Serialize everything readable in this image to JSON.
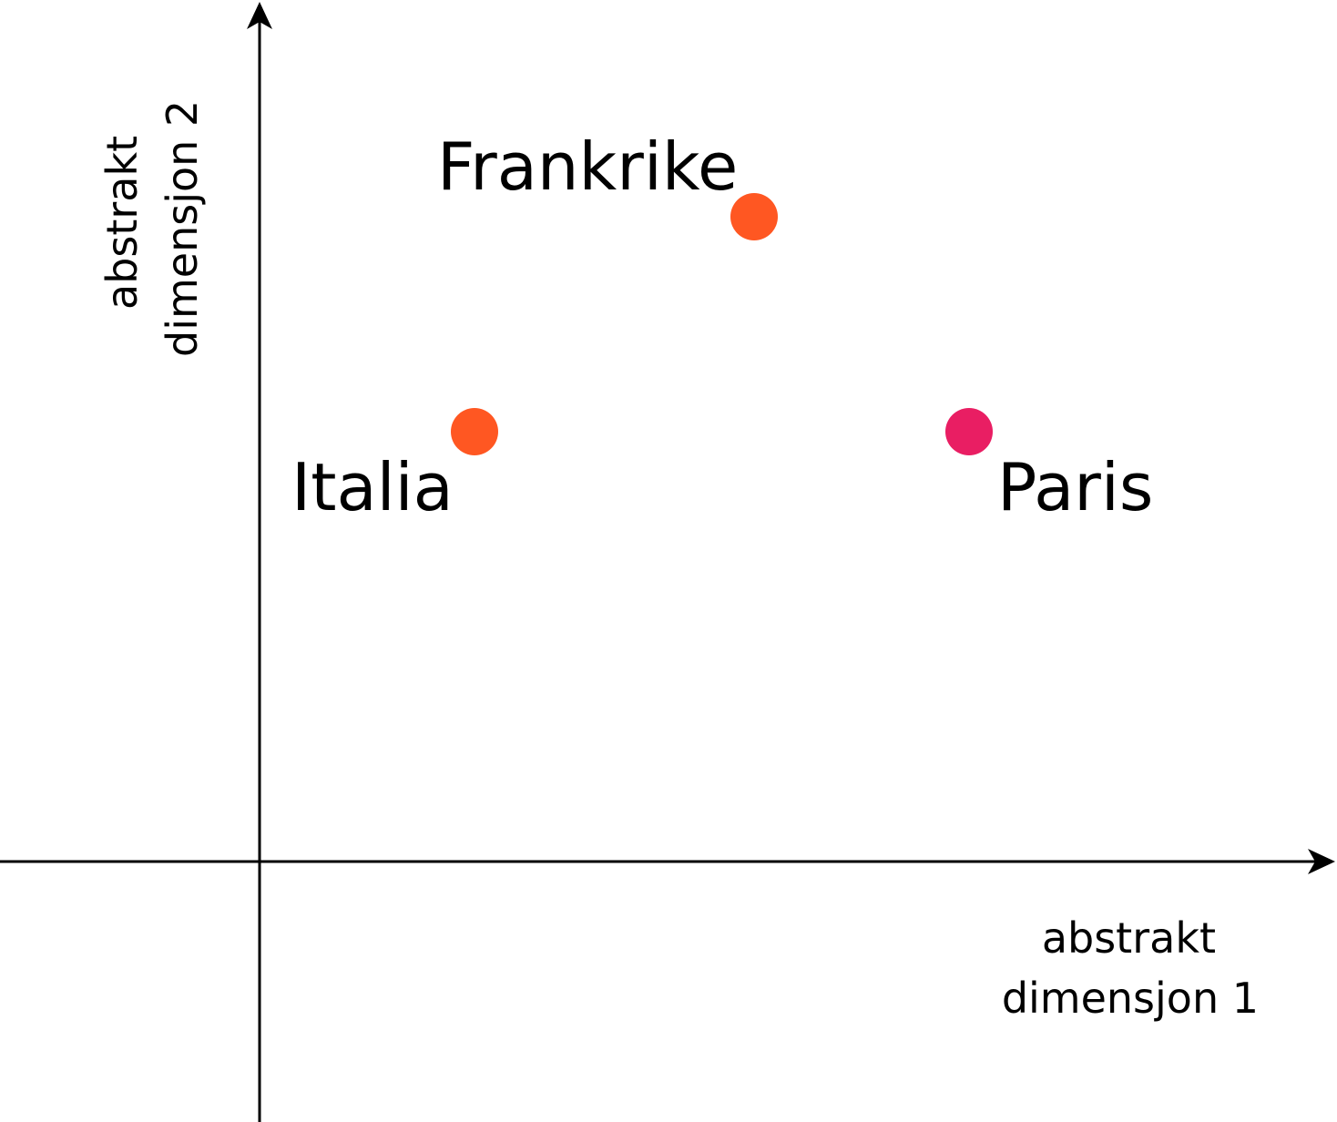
{
  "axes": {
    "x_label_lines": [
      "abstrakt",
      "dimensjon 1"
    ],
    "y_label_lines": [
      "abstrakt",
      "dimensjon 2"
    ]
  },
  "points": [
    {
      "label": "Frankrike",
      "color": "#FF5722"
    },
    {
      "label": "Italia",
      "color": "#FF5722"
    },
    {
      "label": "Paris",
      "color": "#E91E63"
    }
  ]
}
